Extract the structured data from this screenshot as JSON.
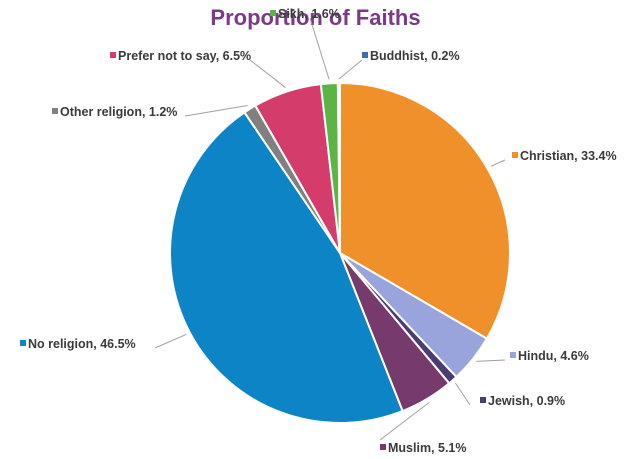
{
  "chart_data": {
    "type": "pie",
    "title": "Proportion of Faiths",
    "slices": [
      {
        "label": "Christian",
        "value": 33.4,
        "label_text": "Christian, 33.4%",
        "color": "#f0902a"
      },
      {
        "label": "Hindu",
        "value": 4.6,
        "label_text": "Hindu, 4.6%",
        "color": "#9aa4dc"
      },
      {
        "label": "Jewish",
        "value": 0.9,
        "label_text": "Jewish, 0.9%",
        "color": "#4c3c74"
      },
      {
        "label": "Muslim",
        "value": 5.1,
        "label_text": "Muslim, 5.1%",
        "color": "#773a6c"
      },
      {
        "label": "No religion",
        "value": 46.5,
        "label_text": "No religion, 46.5%",
        "color": "#0c84c6"
      },
      {
        "label": "Other religion",
        "value": 1.2,
        "label_text": "Other religion, 1.2%",
        "color": "#808080"
      },
      {
        "label": "Prefer not to say",
        "value": 6.5,
        "label_text": "Prefer not to say, 6.5%",
        "color": "#d43c6c"
      },
      {
        "label": "Sikh",
        "value": 1.6,
        "label_text": "Sikh, 1.6%",
        "color": "#5cb444"
      },
      {
        "label": "Buddhist",
        "value": 0.2,
        "label_text": "Buddhist, 0.2%",
        "color": "#3c6cb8"
      }
    ],
    "start_angle": "top",
    "direction": "clockwise",
    "legend": "none (labels with leader lines)"
  }
}
